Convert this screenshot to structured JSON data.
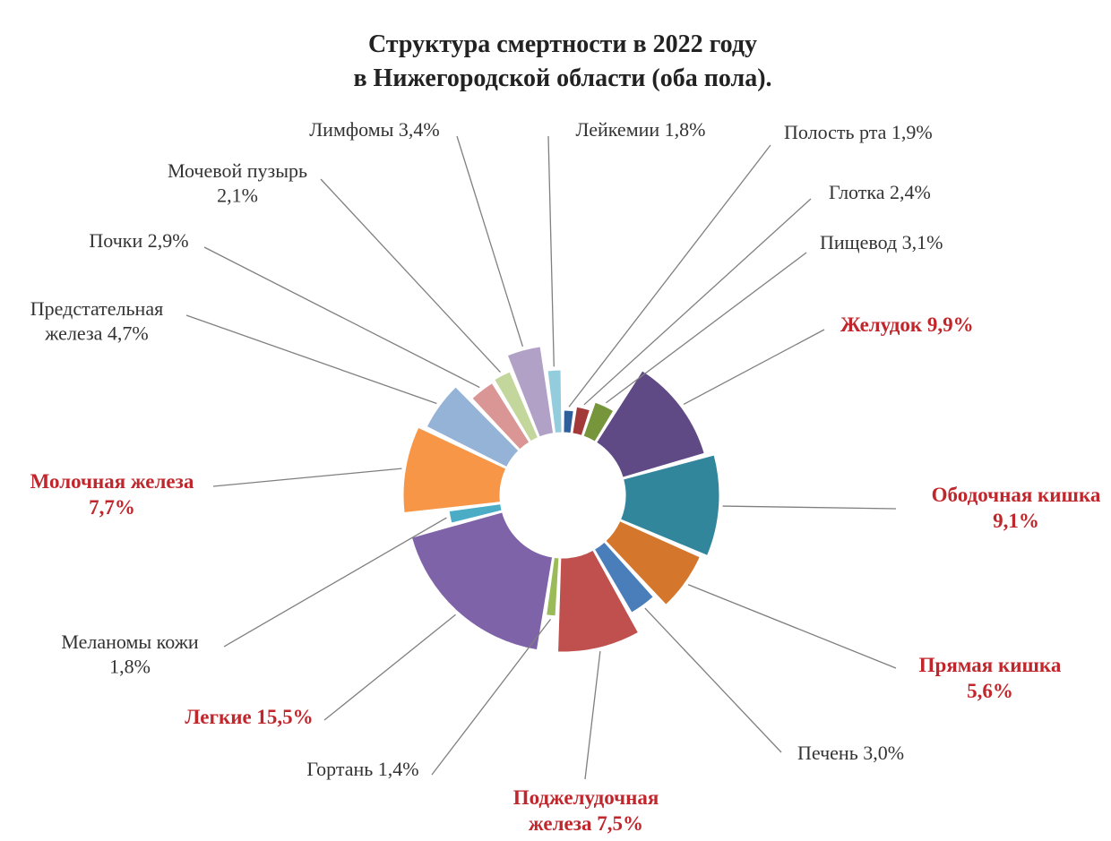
{
  "chart_data": {
    "type": "pie",
    "title_lines": [
      "Структура смертности в 2022 году",
      "в Нижегородской области (оба пола)."
    ],
    "unit": "%",
    "slices": [
      {
        "label_lines": [
          "Полость рта 1,9%"
        ],
        "value": 1.9,
        "color": "#2e5f9a",
        "highlight": false
      },
      {
        "label_lines": [
          "Глотка 2,4%"
        ],
        "value": 2.4,
        "color": "#a33a3a",
        "highlight": false
      },
      {
        "label_lines": [
          "Пищевод 3,1%"
        ],
        "value": 3.1,
        "color": "#77963c",
        "highlight": false
      },
      {
        "label_lines": [
          "Желудок 9,9%"
        ],
        "value": 9.9,
        "color": "#5f4a85",
        "highlight": true
      },
      {
        "label_lines": [
          "Ободочная кишка",
          "9,1%"
        ],
        "value": 9.1,
        "color": "#31869b",
        "highlight": true
      },
      {
        "label_lines": [
          "Прямая кишка",
          "5,6%"
        ],
        "value": 5.6,
        "color": "#d4762c",
        "highlight": true
      },
      {
        "label_lines": [
          "Печень 3,0%"
        ],
        "value": 3.0,
        "color": "#4a7ebb",
        "highlight": false
      },
      {
        "label_lines": [
          "Поджелудочная",
          "железа 7,5%"
        ],
        "value": 7.5,
        "color": "#c0504d",
        "highlight": true
      },
      {
        "label_lines": [
          "Гортань 1,4%"
        ],
        "value": 1.4,
        "color": "#9bbb59",
        "highlight": false
      },
      {
        "label_lines": [
          "Легкие 15,5%"
        ],
        "value": 15.5,
        "color": "#7f63a8",
        "highlight": true
      },
      {
        "label_lines": [
          "Меланомы кожи",
          "1,8%"
        ],
        "value": 1.8,
        "color": "#4bacc6",
        "highlight": false
      },
      {
        "label_lines": [
          "Молочная железа",
          "7,7%"
        ],
        "value": 7.7,
        "color": "#f79646",
        "highlight": true
      },
      {
        "label_lines": [
          "Предстательная",
          "железа 4,7%"
        ],
        "value": 4.7,
        "color": "#95b3d7",
        "highlight": false
      },
      {
        "label_lines": [
          "Почки 2,9%"
        ],
        "value": 2.9,
        "color": "#d99694",
        "highlight": false
      },
      {
        "label_lines": [
          "Мочевой пузырь",
          "2,1%"
        ],
        "value": 2.1,
        "color": "#c3d69b",
        "highlight": false
      },
      {
        "label_lines": [
          "Лимфомы 3,4%"
        ],
        "value": 3.4,
        "color": "#b2a1c7",
        "highlight": false
      },
      {
        "label_lines": [
          "Лейкемии 1,8%"
        ],
        "value": 1.8,
        "color": "#93cddd",
        "highlight": false
      }
    ]
  }
}
